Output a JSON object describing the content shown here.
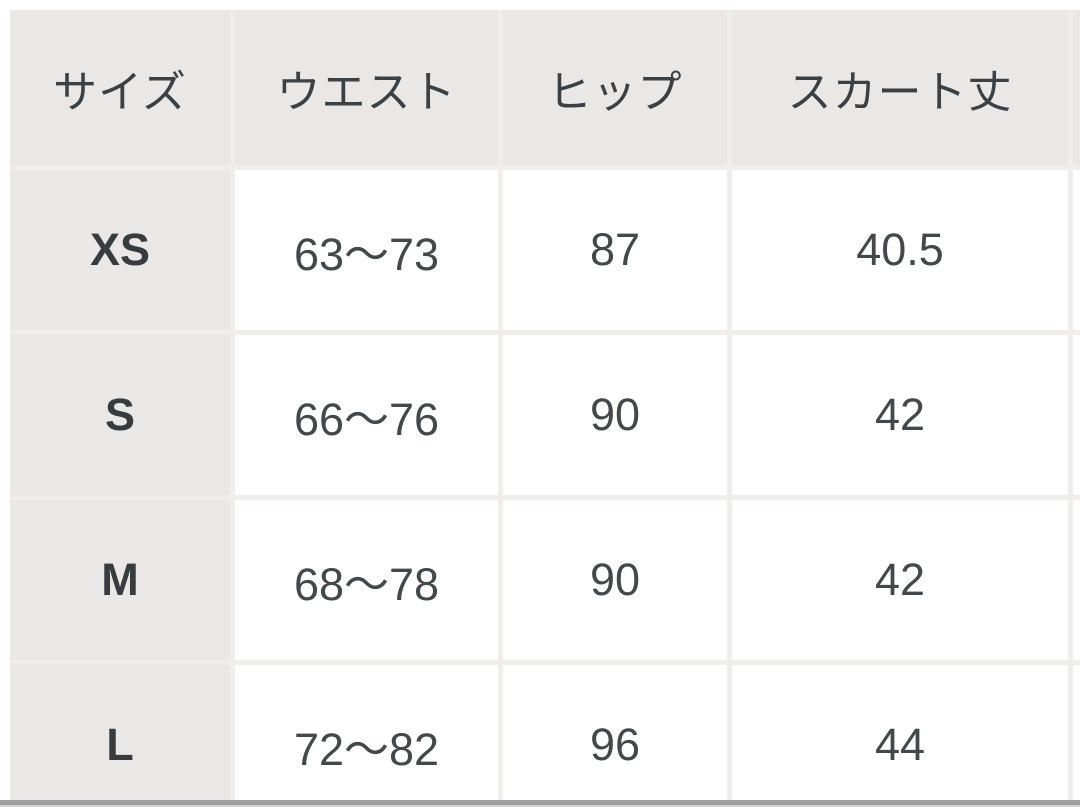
{
  "table": {
    "columns": [
      {
        "key": "size",
        "label": "サイズ"
      },
      {
        "key": "waist",
        "label": "ウエスト"
      },
      {
        "key": "hip",
        "label": "ヒップ"
      },
      {
        "key": "skirt_length",
        "label": "スカート丈"
      },
      {
        "key": "extra_cropped",
        "label": ""
      }
    ],
    "rows": [
      {
        "size": "XS",
        "waist": "63〜73",
        "hip": "87",
        "skirt_length": "40.5"
      },
      {
        "size": "S",
        "waist": "66〜76",
        "hip": "90",
        "skirt_length": "42"
      },
      {
        "size": "M",
        "waist": "68〜78",
        "hip": "90",
        "skirt_length": "42"
      },
      {
        "size": "L",
        "waist": "72〜82",
        "hip": "96",
        "skirt_length": "44"
      }
    ]
  },
  "colors": {
    "header_bg": "#e9e8e7",
    "cell_bg": "#ffffff",
    "border": "#efeeec",
    "text": "#3d4043",
    "bottom_bar": "#9e9ea0"
  }
}
